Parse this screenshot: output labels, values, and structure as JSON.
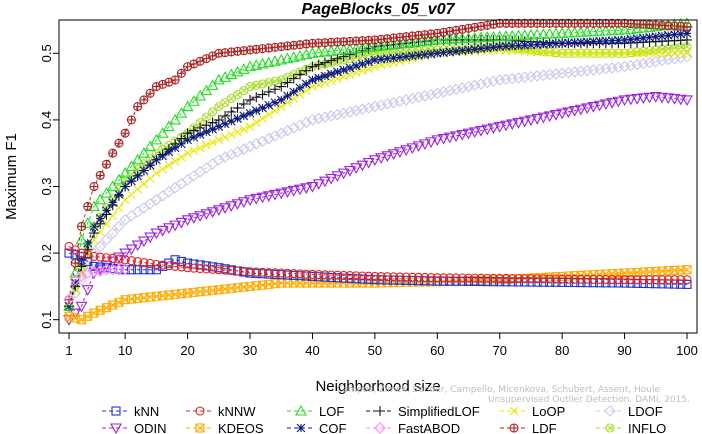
{
  "chart_data": {
    "type": "line",
    "title": "PageBlocks_05_v07",
    "xlabel": "Neighborhood size",
    "ylabel": "Maximum F1",
    "xlim": [
      1,
      100
    ],
    "ylim": [
      0.08,
      0.55
    ],
    "xticks": [
      1,
      10,
      20,
      30,
      40,
      50,
      60,
      70,
      80,
      90,
      100
    ],
    "yticks": [
      0.1,
      0.2,
      0.3,
      0.4,
      0.5
    ],
    "ytick_labels": [
      "0.1",
      "0.2",
      "0.3",
      "0.4",
      "0.5"
    ],
    "grid": false,
    "legend_position": "bottom",
    "watermark": [
      "Campos, Zimek, Sander, Campello, Micenkova, Schubert, Assent, Houle",
      "Unsupervised Outlier Detection. DAMI, 2015."
    ],
    "series": [
      {
        "name": "kNN",
        "color": "#1f33cc",
        "marker": "square",
        "points": [
          [
            1,
            0.2
          ],
          [
            3,
            0.195
          ],
          [
            5,
            0.18
          ],
          [
            10,
            0.175
          ],
          [
            15,
            0.175
          ],
          [
            18,
            0.19
          ],
          [
            20,
            0.185
          ],
          [
            25,
            0.178
          ],
          [
            30,
            0.17
          ],
          [
            40,
            0.165
          ],
          [
            50,
            0.16
          ],
          [
            60,
            0.158
          ],
          [
            70,
            0.157
          ],
          [
            80,
            0.156
          ],
          [
            90,
            0.155
          ],
          [
            100,
            0.153
          ]
        ]
      },
      {
        "name": "kNNW",
        "color": "#e02020",
        "marker": "circle",
        "points": [
          [
            1,
            0.21
          ],
          [
            3,
            0.2
          ],
          [
            5,
            0.195
          ],
          [
            10,
            0.19
          ],
          [
            15,
            0.183
          ],
          [
            20,
            0.178
          ],
          [
            30,
            0.172
          ],
          [
            40,
            0.168
          ],
          [
            50,
            0.165
          ],
          [
            60,
            0.163
          ],
          [
            70,
            0.162
          ],
          [
            80,
            0.161
          ],
          [
            90,
            0.16
          ],
          [
            100,
            0.16
          ]
        ]
      },
      {
        "name": "LOF",
        "color": "#22dd22",
        "marker": "triangle-up",
        "points": [
          [
            1,
            0.12
          ],
          [
            3,
            0.22
          ],
          [
            5,
            0.27
          ],
          [
            10,
            0.32
          ],
          [
            15,
            0.37
          ],
          [
            20,
            0.42
          ],
          [
            25,
            0.46
          ],
          [
            30,
            0.48
          ],
          [
            35,
            0.49
          ],
          [
            40,
            0.5
          ],
          [
            50,
            0.51
          ],
          [
            60,
            0.52
          ],
          [
            70,
            0.525
          ],
          [
            80,
            0.53
          ],
          [
            90,
            0.535
          ],
          [
            100,
            0.545
          ]
        ]
      },
      {
        "name": "SimplifiedLOF",
        "color": "#111111",
        "marker": "plus",
        "points": [
          [
            1,
            0.12
          ],
          [
            3,
            0.18
          ],
          [
            5,
            0.23
          ],
          [
            10,
            0.3
          ],
          [
            15,
            0.34
          ],
          [
            20,
            0.38
          ],
          [
            25,
            0.4
          ],
          [
            30,
            0.43
          ],
          [
            35,
            0.45
          ],
          [
            40,
            0.48
          ],
          [
            50,
            0.51
          ],
          [
            60,
            0.52
          ],
          [
            70,
            0.52
          ],
          [
            80,
            0.515
          ],
          [
            90,
            0.515
          ],
          [
            100,
            0.52
          ]
        ]
      },
      {
        "name": "LoOP",
        "color": "#e8e800",
        "marker": "x",
        "points": [
          [
            1,
            0.12
          ],
          [
            3,
            0.17
          ],
          [
            5,
            0.22
          ],
          [
            10,
            0.28
          ],
          [
            15,
            0.32
          ],
          [
            20,
            0.35
          ],
          [
            25,
            0.37
          ],
          [
            30,
            0.39
          ],
          [
            35,
            0.42
          ],
          [
            40,
            0.45
          ],
          [
            50,
            0.48
          ],
          [
            60,
            0.5
          ],
          [
            70,
            0.505
          ],
          [
            80,
            0.5
          ],
          [
            90,
            0.5
          ],
          [
            100,
            0.5
          ]
        ]
      },
      {
        "name": "LDOF",
        "color": "#c8c8ee",
        "marker": "diamond",
        "points": [
          [
            1,
            0.12
          ],
          [
            3,
            0.16
          ],
          [
            5,
            0.2
          ],
          [
            10,
            0.25
          ],
          [
            15,
            0.28
          ],
          [
            20,
            0.31
          ],
          [
            25,
            0.34
          ],
          [
            30,
            0.36
          ],
          [
            35,
            0.38
          ],
          [
            40,
            0.4
          ],
          [
            50,
            0.42
          ],
          [
            60,
            0.44
          ],
          [
            70,
            0.46
          ],
          [
            80,
            0.47
          ],
          [
            90,
            0.48
          ],
          [
            100,
            0.495
          ]
        ]
      },
      {
        "name": "ODIN",
        "color": "#9922dd",
        "marker": "triangle-down",
        "points": [
          [
            1,
            0.1
          ],
          [
            3,
            0.12
          ],
          [
            5,
            0.17
          ],
          [
            10,
            0.2
          ],
          [
            15,
            0.23
          ],
          [
            20,
            0.25
          ],
          [
            25,
            0.265
          ],
          [
            30,
            0.28
          ],
          [
            35,
            0.29
          ],
          [
            40,
            0.3
          ],
          [
            50,
            0.34
          ],
          [
            60,
            0.37
          ],
          [
            70,
            0.39
          ],
          [
            80,
            0.41
          ],
          [
            90,
            0.43
          ],
          [
            95,
            0.435
          ],
          [
            100,
            0.43
          ]
        ]
      },
      {
        "name": "KDEOS",
        "color": "#ffaa00",
        "marker": "square-x",
        "points": [
          [
            1,
            0.105
          ],
          [
            3,
            0.1
          ],
          [
            5,
            0.11
          ],
          [
            10,
            0.13
          ],
          [
            15,
            0.135
          ],
          [
            20,
            0.14
          ],
          [
            25,
            0.145
          ],
          [
            30,
            0.15
          ],
          [
            35,
            0.155
          ],
          [
            40,
            0.155
          ],
          [
            50,
            0.155
          ],
          [
            60,
            0.157
          ],
          [
            70,
            0.16
          ],
          [
            80,
            0.165
          ],
          [
            90,
            0.17
          ],
          [
            100,
            0.175
          ]
        ]
      },
      {
        "name": "COF",
        "color": "#0a1a7a",
        "marker": "star",
        "points": [
          [
            1,
            0.12
          ],
          [
            3,
            0.19
          ],
          [
            5,
            0.24
          ],
          [
            10,
            0.3
          ],
          [
            15,
            0.34
          ],
          [
            20,
            0.37
          ],
          [
            25,
            0.39
          ],
          [
            30,
            0.41
          ],
          [
            35,
            0.43
          ],
          [
            40,
            0.46
          ],
          [
            50,
            0.49
          ],
          [
            60,
            0.5
          ],
          [
            70,
            0.51
          ],
          [
            80,
            0.515
          ],
          [
            90,
            0.52
          ],
          [
            100,
            0.53
          ]
        ]
      },
      {
        "name": "FastABOD",
        "color": "#ff88ff",
        "marker": "diamond",
        "points": [
          [
            1,
            0.13
          ],
          [
            2,
            0.16
          ],
          [
            3,
            0.165
          ],
          [
            4,
            0.17
          ],
          [
            5,
            0.172
          ],
          [
            6,
            0.173
          ],
          [
            7,
            0.175
          ],
          [
            8,
            0.175
          ],
          [
            9,
            0.175
          ],
          [
            10,
            0.176
          ]
        ]
      },
      {
        "name": "LDF",
        "color": "#aa2222",
        "marker": "circle-plus",
        "points": [
          [
            1,
            0.13
          ],
          [
            3,
            0.24
          ],
          [
            5,
            0.3
          ],
          [
            8,
            0.35
          ],
          [
            10,
            0.38
          ],
          [
            12,
            0.42
          ],
          [
            15,
            0.45
          ],
          [
            18,
            0.46
          ],
          [
            20,
            0.48
          ],
          [
            25,
            0.5
          ],
          [
            30,
            0.505
          ],
          [
            35,
            0.51
          ],
          [
            40,
            0.515
          ],
          [
            50,
            0.52
          ],
          [
            60,
            0.53
          ],
          [
            70,
            0.545
          ],
          [
            80,
            0.545
          ],
          [
            90,
            0.545
          ],
          [
            100,
            0.54
          ]
        ]
      },
      {
        "name": "INFLO",
        "color": "#aadd33",
        "marker": "circle-x",
        "points": [
          [
            1,
            0.12
          ],
          [
            3,
            0.18
          ],
          [
            5,
            0.24
          ],
          [
            10,
            0.31
          ],
          [
            15,
            0.35
          ],
          [
            20,
            0.38
          ],
          [
            25,
            0.42
          ],
          [
            30,
            0.45
          ],
          [
            35,
            0.46
          ],
          [
            40,
            0.48
          ],
          [
            50,
            0.5
          ],
          [
            60,
            0.505
          ],
          [
            70,
            0.51
          ],
          [
            80,
            0.5
          ],
          [
            90,
            0.5
          ],
          [
            100,
            0.51
          ]
        ]
      }
    ],
    "legend": [
      [
        "kNN",
        "kNNW",
        "LOF",
        "SimplifiedLOF",
        "LoOP",
        "LDOF"
      ],
      [
        "ODIN",
        "KDEOS",
        "COF",
        "FastABOD",
        "LDF",
        "INFLO"
      ]
    ]
  }
}
